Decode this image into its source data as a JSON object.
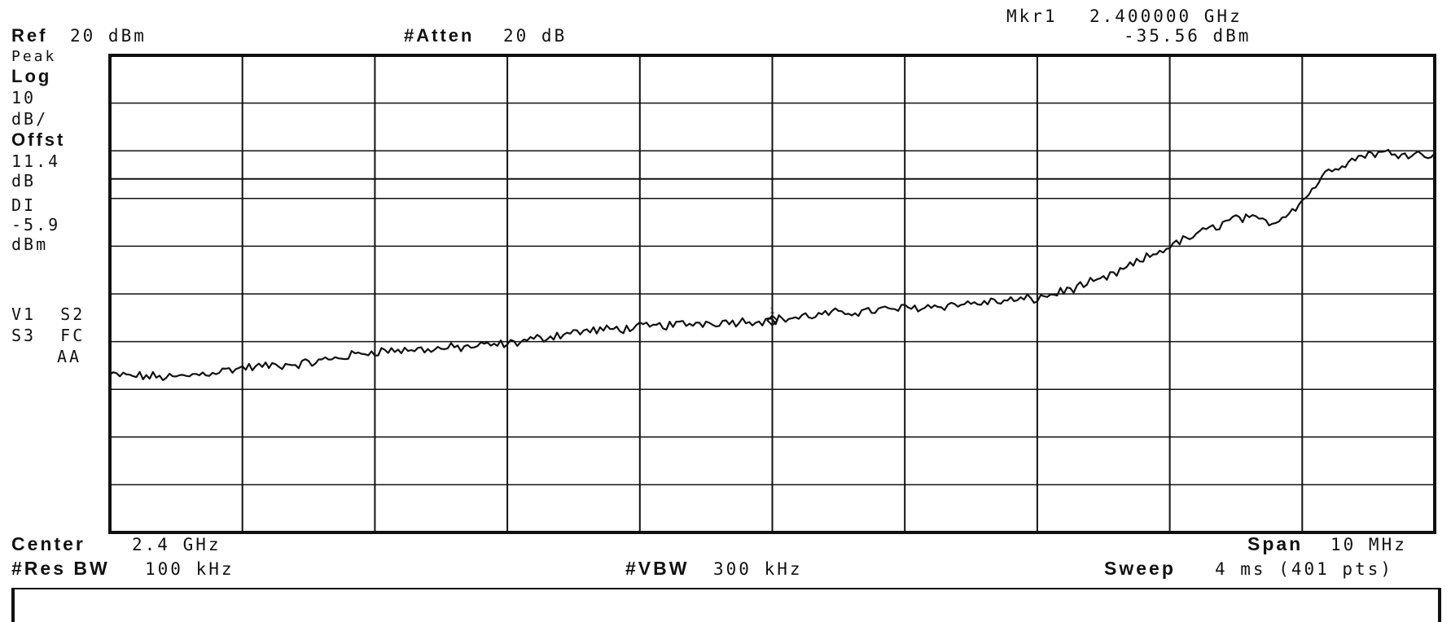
{
  "header": {
    "marker_label": "Mkr1",
    "marker_freq": "2.400000 GHz",
    "marker_level": "-35.56 dBm",
    "ref_label": "Ref",
    "ref_value": "20 dBm",
    "atten_label": "#Atten",
    "atten_value": "20 dB"
  },
  "sidebar": {
    "detector": "Peak",
    "scale_type": "Log",
    "scale_value": "10",
    "scale_unit": "dB/",
    "offset_label": "Offst",
    "offset_value": "11.4",
    "offset_unit": "dB",
    "dl_label": "DI",
    "dl_value": "-5.9",
    "dl_unit": "dBm",
    "flags_row1": "V1  S2",
    "flags_row2": "S3  FC",
    "flags_row3": "AA"
  },
  "footer": {
    "center_label": "Center",
    "center_value": "2.4 GHz",
    "span_label": "Span",
    "span_value": "10 MHz",
    "rbw_label": "#Res BW",
    "rbw_value": "100 kHz",
    "vbw_label": "#VBW",
    "vbw_value": "300 kHz",
    "sweep_label": "Sweep",
    "sweep_value": "4 ms (401 pts)"
  },
  "colors": {
    "trace": "#111111",
    "grid": "#111111",
    "background": "#ffffff"
  },
  "chart_data": {
    "type": "line",
    "x_unit": "MHz offset from center",
    "xlim": [
      -5,
      5
    ],
    "ylim": [
      -80,
      20
    ],
    "y_unit": "dBm",
    "grid": true,
    "display_line_dbm": -5.9,
    "marker": {
      "x": 0,
      "y": -35.56
    },
    "series": [
      {
        "x": [
          -5.0,
          -4.5,
          -4.0,
          -3.5,
          -3.0,
          -2.5,
          -2.0,
          -1.5,
          -1.0,
          -0.5,
          0.0,
          0.5,
          1.0,
          1.5,
          2.0,
          2.5,
          3.0,
          3.5,
          3.8,
          4.0,
          4.2,
          4.5,
          4.8,
          5.0
        ],
        "values": [
          -47.0,
          -47.5,
          -45.5,
          -44.5,
          -42.0,
          -41.5,
          -40.5,
          -38.0,
          -37.0,
          -36.0,
          -35.5,
          -34.0,
          -33.0,
          -32.0,
          -31.0,
          -27.0,
          -20.0,
          -14.0,
          -15.0,
          -10.5,
          -4.0,
          -0.5,
          -0.5,
          -1.0
        ]
      }
    ]
  }
}
